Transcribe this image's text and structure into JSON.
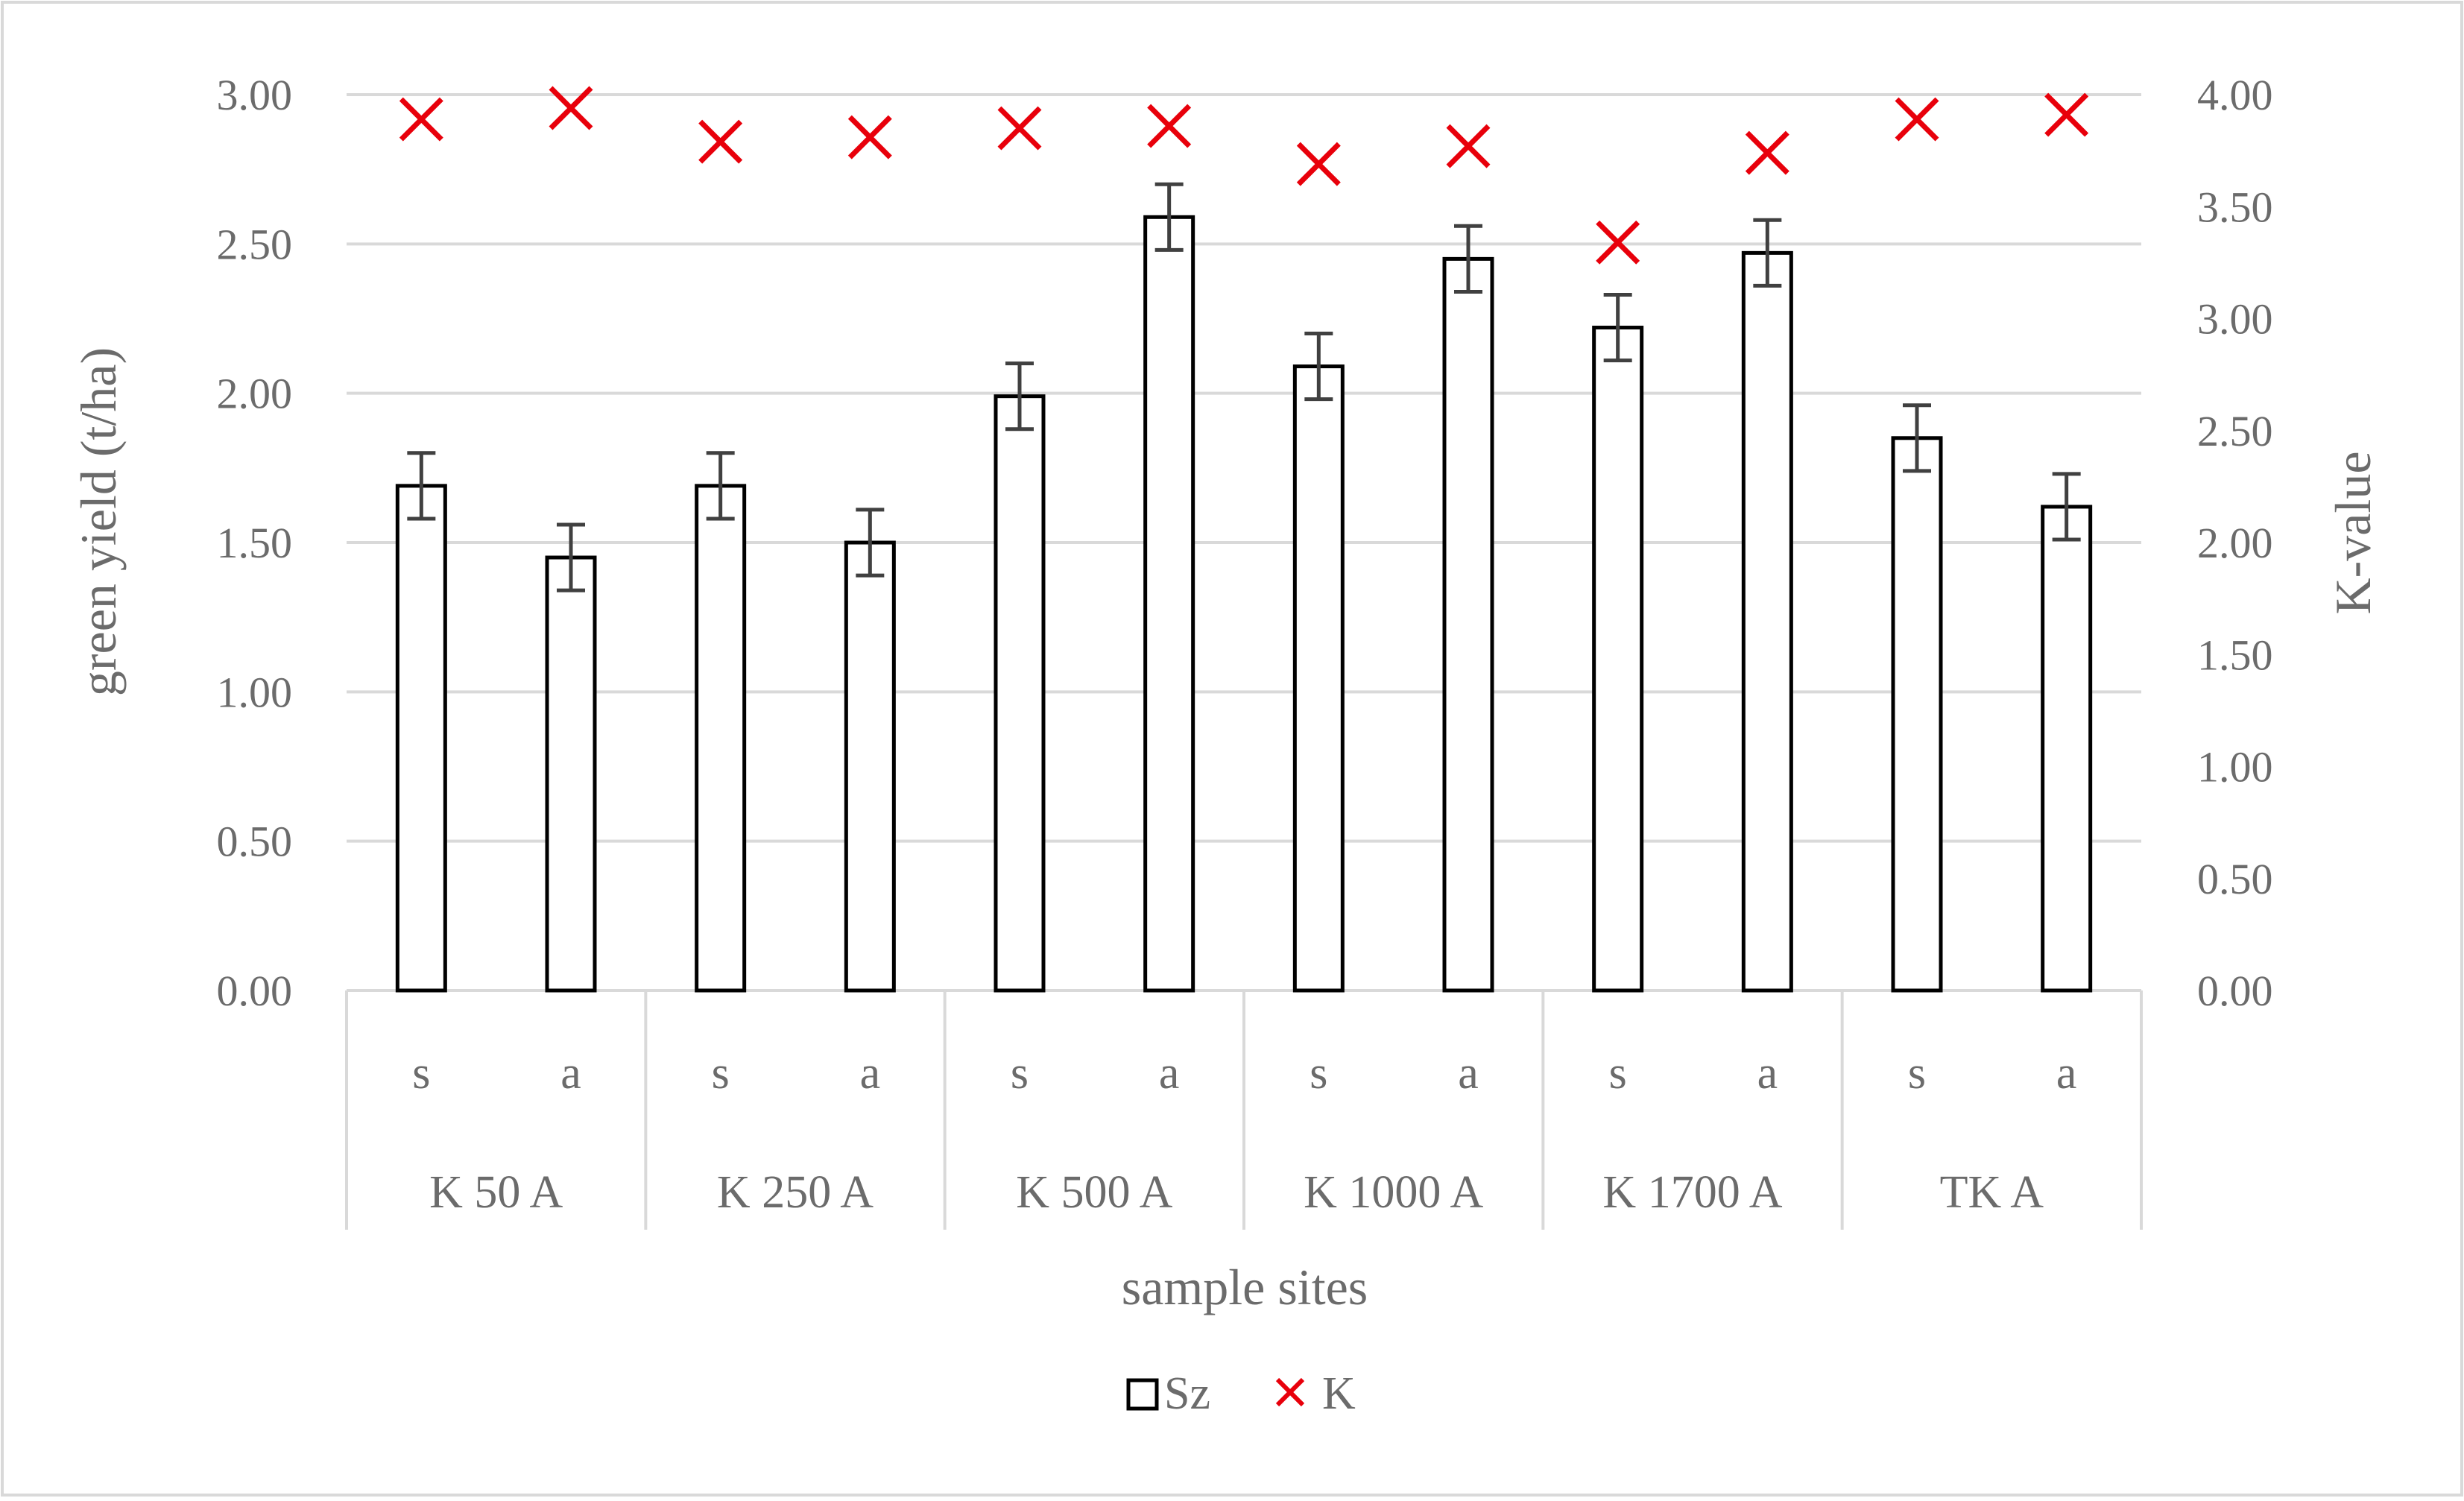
{
  "chart_data": {
    "type": "bar",
    "groups": [
      "K 50 A",
      "K 250 A",
      "K 500 A",
      "K 1000 A",
      "K 1700 A",
      "TK A"
    ],
    "subcategories": [
      "s",
      "a"
    ],
    "series": [
      {
        "name": "Sz",
        "axis": "left",
        "kind": "bar",
        "values": [
          1.69,
          1.45,
          1.69,
          1.5,
          1.99,
          2.59,
          2.09,
          2.45,
          2.22,
          2.47,
          1.85,
          1.62
        ],
        "error": [
          0.11,
          0.11,
          0.11,
          0.11,
          0.11,
          0.11,
          0.11,
          0.11,
          0.11,
          0.11,
          0.11,
          0.11
        ]
      },
      {
        "name": "K",
        "axis": "right",
        "kind": "scatter",
        "values": [
          3.89,
          3.94,
          3.79,
          3.81,
          3.85,
          3.86,
          3.69,
          3.77,
          3.34,
          3.74,
          3.89,
          3.91
        ]
      }
    ],
    "ylabel": "green yield (t/ha)",
    "y2label": "K-value",
    "xlabel": "sample sites",
    "ylim": [
      0,
      3.0
    ],
    "y2lim": [
      0,
      4.0
    ],
    "yticks": [
      "0.00",
      "0.50",
      "1.00",
      "1.50",
      "2.00",
      "2.50",
      "3.00"
    ],
    "y2ticks": [
      "0.00",
      "0.50",
      "1.00",
      "1.50",
      "2.00",
      "2.50",
      "3.00",
      "3.50",
      "4.00"
    ],
    "grid": true,
    "legend_position": "bottom",
    "colors": {
      "bar_fill": "#ffffff",
      "bar_stroke": "#000000",
      "error_bar": "#404040",
      "marker": "#e8000b",
      "grid": "#d9d9d9",
      "text": "#6b6b6b"
    }
  }
}
